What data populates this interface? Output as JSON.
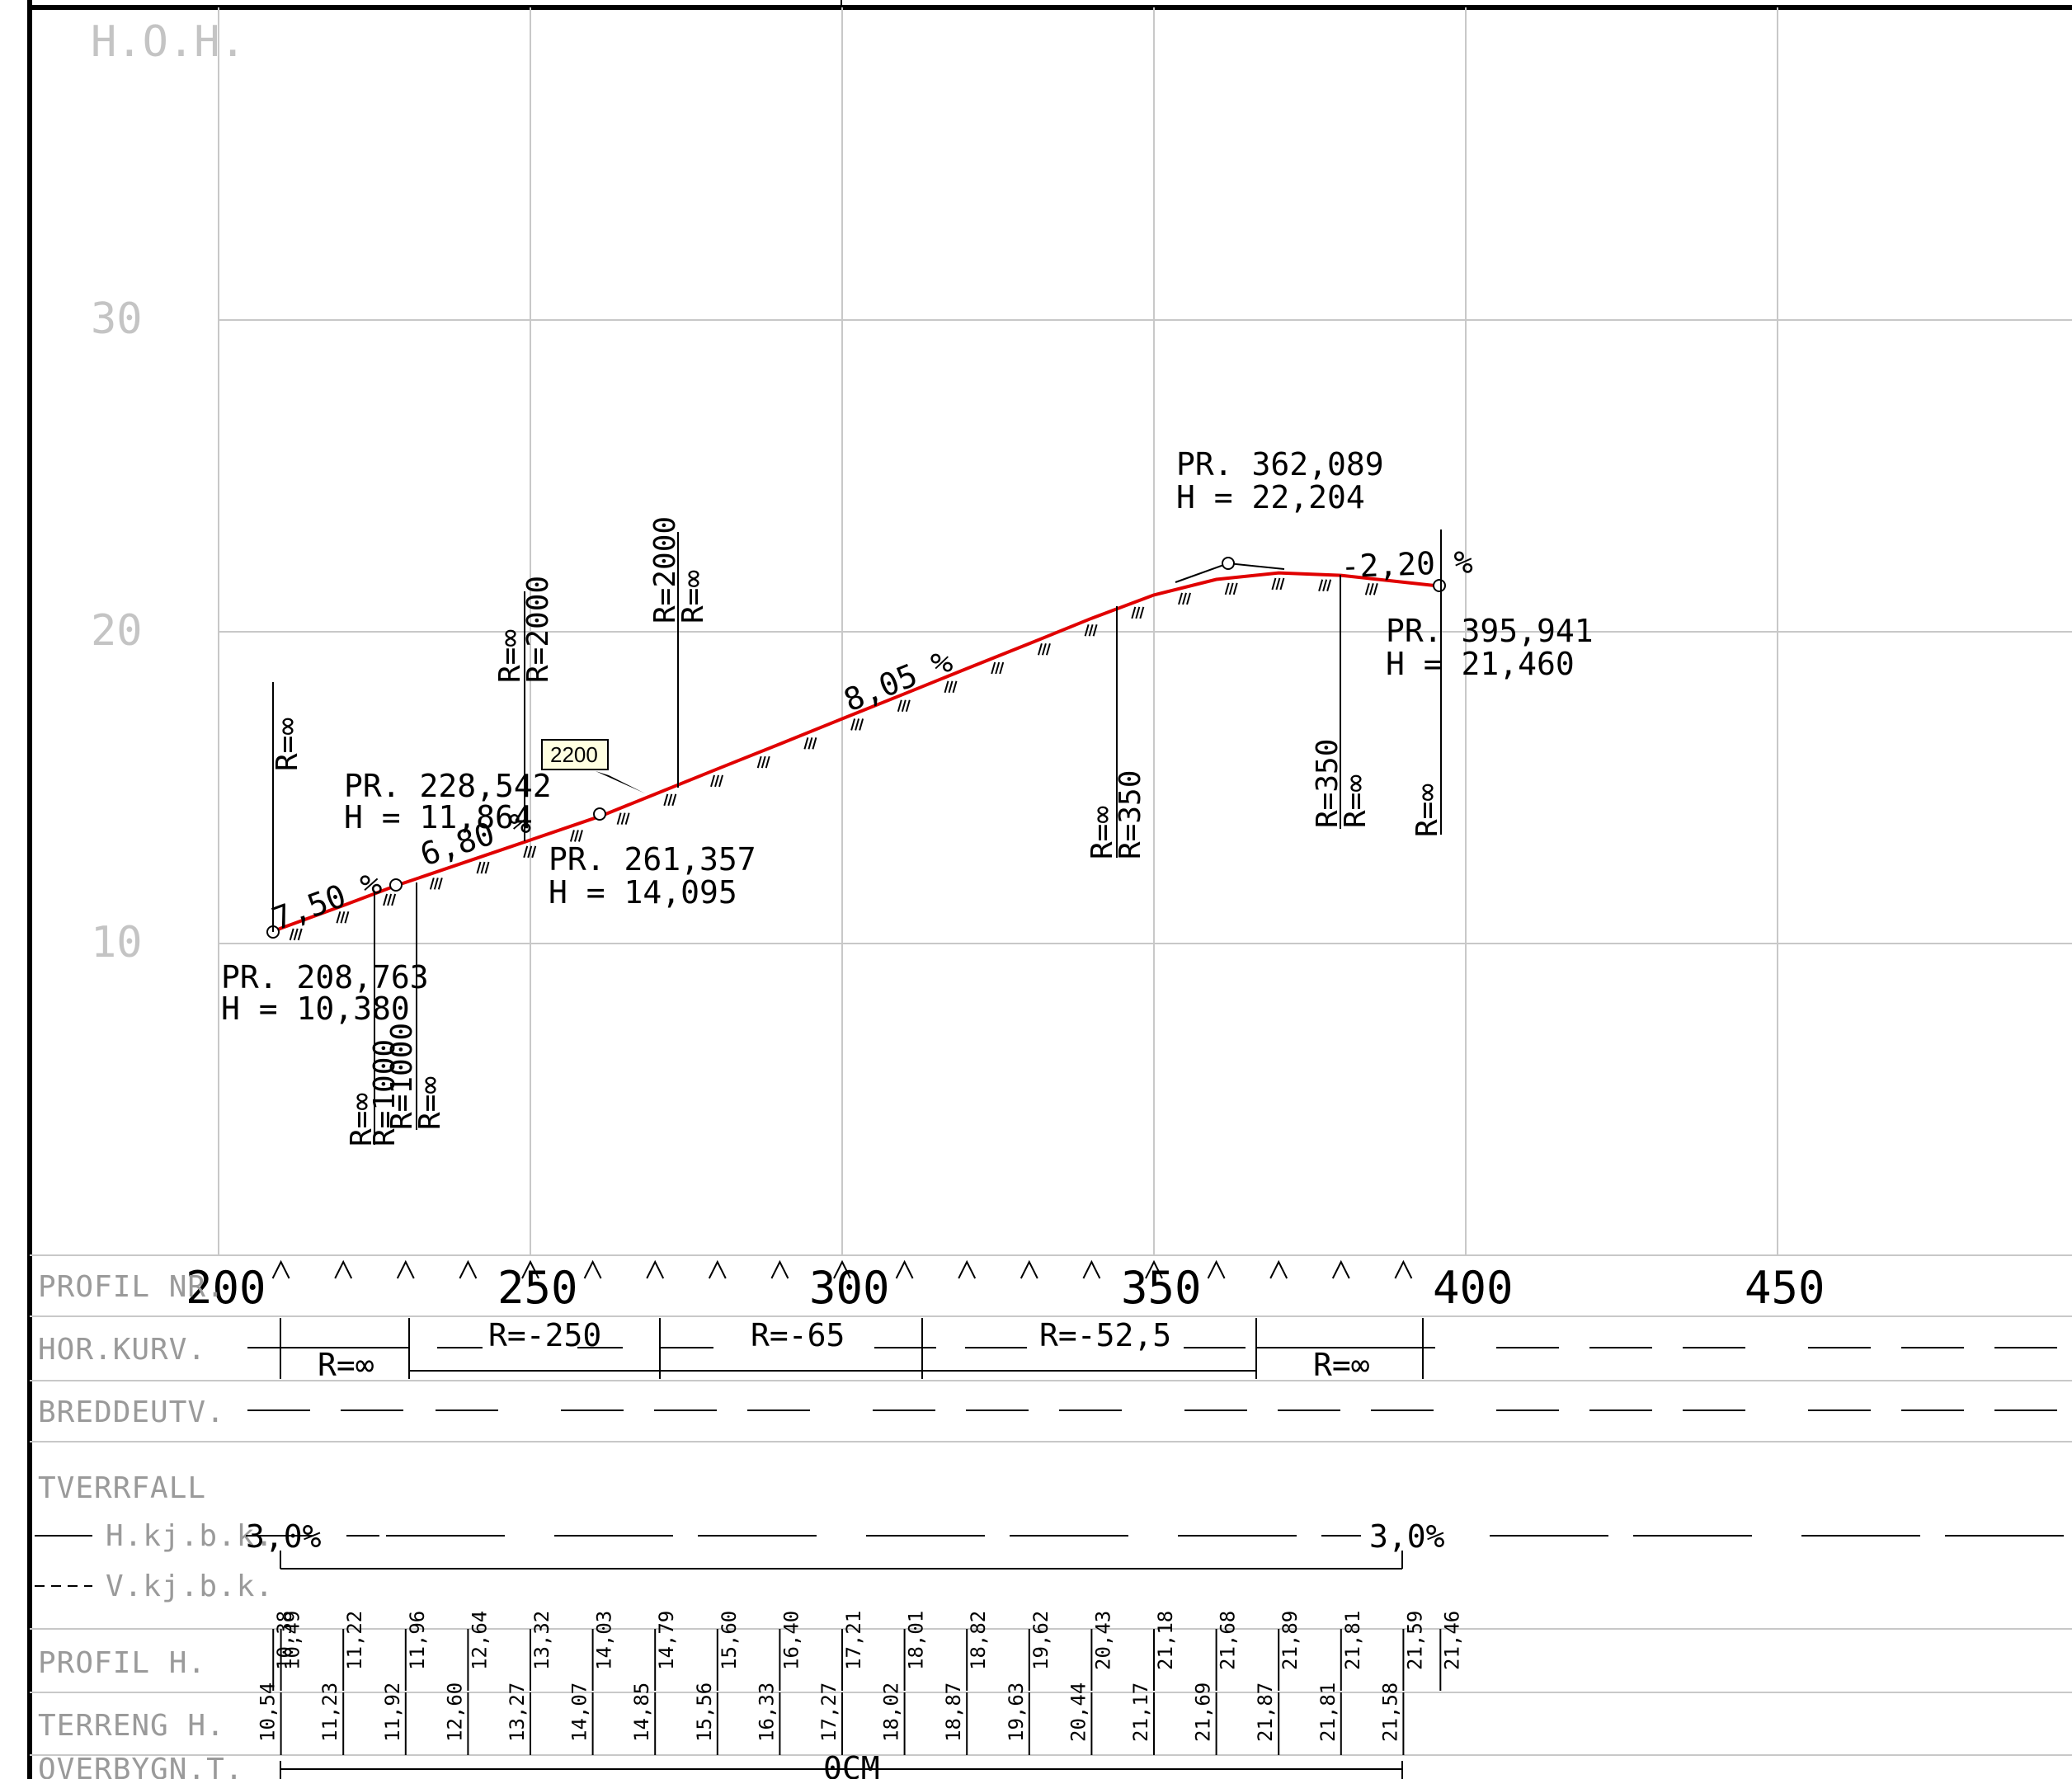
{
  "axis": {
    "y_title": "H.O.H.",
    "y_ticks": [
      "30",
      "20",
      "10"
    ],
    "x_ticks": [
      "200",
      "250",
      "300",
      "350",
      "400",
      "450"
    ]
  },
  "rows": {
    "profil_nr": "PROFIL NR.",
    "hor_kurv": "HOR.KURV.",
    "breddeutv": "BREDDEUTV.",
    "tverrfall": "TVERRFALL",
    "hkjbk": "H.kj.b.k.",
    "vkjbk": "V.kj.b.k.",
    "profil_h": "PROFIL  H.",
    "terreng_h": "TERRENG  H.",
    "overbygn": "OVERBYGN.T."
  },
  "hor_curves": [
    "R=∞",
    "R=-250",
    "R=-65",
    "R=-52,5",
    "R=∞"
  ],
  "tverrfall_values": [
    "3,0%",
    "3,0%"
  ],
  "overbygn_value": "0CM",
  "grades": [
    "7,50 %",
    "6,80 %",
    "8,05 %",
    "-2,20 %"
  ],
  "points": [
    {
      "pr": "PR. 208,763",
      "h": "H = 10,380"
    },
    {
      "pr": "PR. 228,542",
      "h": "H = 11,864"
    },
    {
      "pr": "PR. 261,357",
      "h": "H = 14,095"
    },
    {
      "pr": "PR. 362,089",
      "h": "H = 22,204"
    },
    {
      "pr": "PR. 395,941",
      "h": "H = 21,460"
    }
  ],
  "vertical_radius_labels": [
    "R=∞",
    "R=∞",
    "R=2000",
    "R=2000",
    "R=∞",
    "R=∞",
    "R=350",
    "R=350",
    "R=∞",
    "R=∞",
    "R=1000",
    "R=1000",
    "R=∞",
    "R=∞"
  ],
  "tooltip": "2200",
  "profil_h": [
    "10,38",
    "10,49",
    "11,22",
    "11,96",
    "12,64",
    "13,32",
    "14,03",
    "14,79",
    "15,60",
    "16,40",
    "17,21",
    "18,01",
    "18,82",
    "19,62",
    "20,43",
    "21,18",
    "21,68",
    "21,89",
    "21,81",
    "21,59",
    "21,46"
  ],
  "terreng_h": [
    "10,54",
    "11,23",
    "11,92",
    "12,60",
    "13,27",
    "14,07",
    "14,85",
    "15,56",
    "16,33",
    "17,27",
    "18,02",
    "18,87",
    "19,63",
    "20,44",
    "21,17",
    "21,69",
    "21,87",
    "21,81",
    "21,58"
  ],
  "chart_data": {
    "type": "line",
    "xlabel": "PROFIL NR.",
    "ylabel": "H.O.H.",
    "xlim": [
      200,
      450
    ],
    "ylim": [
      0,
      40
    ],
    "series": [
      {
        "values": [
          [
            208.763,
            10.38
          ],
          [
            210,
            10.49
          ],
          [
            220,
            11.22
          ],
          [
            228.542,
            11.864
          ],
          [
            230,
            11.96
          ],
          [
            240,
            12.64
          ],
          [
            250,
            13.32
          ],
          [
            261.357,
            14.095
          ],
          [
            270,
            14.79
          ],
          [
            280,
            15.6
          ],
          [
            290,
            16.4
          ],
          [
            300,
            17.21
          ],
          [
            310,
            18.01
          ],
          [
            320,
            18.82
          ],
          [
            330,
            19.62
          ],
          [
            340,
            20.43
          ],
          [
            350,
            21.18
          ],
          [
            360,
            21.68
          ],
          [
            370,
            21.89
          ],
          [
            380,
            21.81
          ],
          [
            390,
            21.59
          ],
          [
            395.941,
            21.46
          ]
        ]
      }
    ]
  }
}
